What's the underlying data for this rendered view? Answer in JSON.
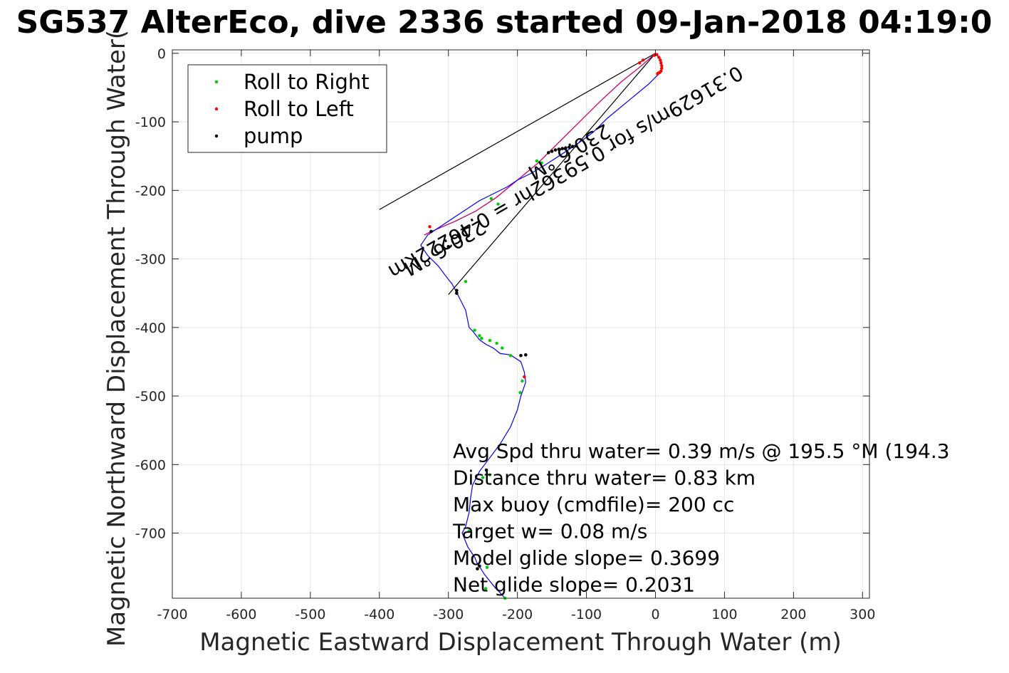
{
  "chart_data": {
    "type": "line",
    "title": "SG537 AlterEco, dive 2336 started 09-Jan-2018 04:19:0",
    "xlabel": "Magnetic Eastward Displacement Through Water (m)",
    "ylabel": "Magnetic Northward Displacement Through Water(",
    "xlim": [
      -700,
      310
    ],
    "ylim": [
      -795,
      5
    ],
    "xticks": [
      -700,
      -600,
      -500,
      -400,
      -300,
      -200,
      -100,
      0,
      100,
      200,
      300
    ],
    "yticks": [
      0,
      -100,
      -200,
      -300,
      -400,
      -500,
      -600,
      -700
    ],
    "grid": true,
    "legend": {
      "placement": "top-left",
      "entries": [
        {
          "label": "Roll to Right",
          "color": "#00cc00"
        },
        {
          "label": "Roll to Left",
          "color": "#ff0000"
        },
        {
          "label": "pump",
          "color": "#000000"
        }
      ]
    },
    "track": {
      "color": "#0000ff",
      "x": [
        0,
        8,
        10,
        5,
        -10,
        -40,
        -70,
        -90,
        -110,
        -125,
        -140,
        -160,
        -180,
        -200,
        -215,
        -235,
        -255,
        -270,
        -285,
        -300,
        -315,
        -330,
        -340,
        -330,
        -315,
        -300,
        -295,
        -290,
        -275,
        -270,
        -265,
        -255,
        -245,
        -235,
        -225,
        -210,
        -195,
        -190,
        -188,
        -195,
        -200,
        -210,
        -225,
        -240,
        -255,
        -265,
        -268,
        -270,
        -275,
        -280,
        -272,
        -262,
        -258,
        -253,
        -248,
        -240,
        -232,
        -225,
        -218
      ],
      "y": [
        0,
        -10,
        -20,
        -30,
        -45,
        -70,
        -95,
        -115,
        -130,
        -140,
        -150,
        -163,
        -175,
        -185,
        -195,
        -205,
        -215,
        -225,
        -235,
        -245,
        -255,
        -265,
        -280,
        -295,
        -310,
        -330,
        -336,
        -345,
        -375,
        -400,
        -405,
        -418,
        -425,
        -430,
        -438,
        -440,
        -450,
        -465,
        -480,
        -500,
        -520,
        -545,
        -570,
        -590,
        -610,
        -630,
        -650,
        -670,
        -690,
        -700,
        -720,
        -735,
        -745,
        -752,
        -760,
        -770,
        -780,
        -787,
        -795
      ]
    },
    "mag_track": {
      "color": "#cc0066",
      "x": [
        0,
        -20,
        -50,
        -80,
        -110,
        -140,
        -170,
        -200,
        -230,
        -260,
        -290,
        -320,
        -335
      ],
      "y": [
        0,
        -18,
        -42,
        -70,
        -100,
        -130,
        -160,
        -185,
        -210,
        -230,
        -245,
        -258,
        -265
      ]
    },
    "roll_right": {
      "x": [
        -165,
        -172,
        -228,
        -238,
        -275,
        -262,
        -255,
        -252,
        -240,
        -230,
        -222,
        -210,
        -193,
        -196,
        -240,
        -250,
        -270,
        -244,
        -246,
        -218
      ],
      "y": [
        -160,
        -157,
        -220,
        -212,
        -333,
        -404,
        -412,
        -416,
        -419,
        -423,
        -430,
        -441,
        -478,
        -495,
        -615,
        -619,
        -697,
        -750,
        -781,
        -795
      ]
    },
    "roll_left": {
      "x": [
        2,
        5,
        7,
        8,
        9,
        9,
        8,
        6,
        4,
        3,
        -2,
        -18,
        -23,
        -190,
        -327
      ],
      "y": [
        -2,
        -6,
        -10,
        -14,
        -18,
        -22,
        -26,
        -28,
        -29,
        -30,
        -3,
        -10,
        -14,
        -472,
        -253
      ]
    },
    "pump": {
      "x": [
        -115,
        -120,
        -125,
        -130,
        -135,
        -140,
        -145,
        -150,
        -155,
        -188,
        -195,
        -300,
        -325,
        -288,
        -288,
        -245,
        -255,
        -258
      ],
      "y": [
        -135,
        -136,
        -137,
        -138,
        -139,
        -140,
        -141,
        -143,
        -145,
        -440,
        -441,
        -282,
        -260,
        -350,
        -346,
        -608,
        -748,
        -752
      ]
    },
    "cone_lines": [
      {
        "x": [
          0,
          -400
        ],
        "y": [
          0,
          -228
        ]
      },
      {
        "x": [
          0,
          -300
        ],
        "y": [
          0,
          -352
        ]
      }
    ],
    "annotations": [
      {
        "text": "230.6 °M",
        "x": -130,
        "y": -135,
        "rotation": 150
      },
      {
        "text": "0.31629m/s for 0.59362hr = 0.46222km",
        "x": -135,
        "y": -165,
        "rotation": 150
      },
      {
        "text": "230.6 °M",
        "x": -310,
        "y": -275,
        "rotation": 150
      }
    ],
    "stats": [
      "Avg Spd thru water=  0.39 m/s @ 195.5 °M (194.3",
      "Distance thru water=  0.83 km",
      "Max buoy (cmdfile)= 200 cc",
      "Target w= 0.08 m/s",
      "Model glide slope= 0.3699",
      "Net glide slope= 0.2031"
    ]
  }
}
